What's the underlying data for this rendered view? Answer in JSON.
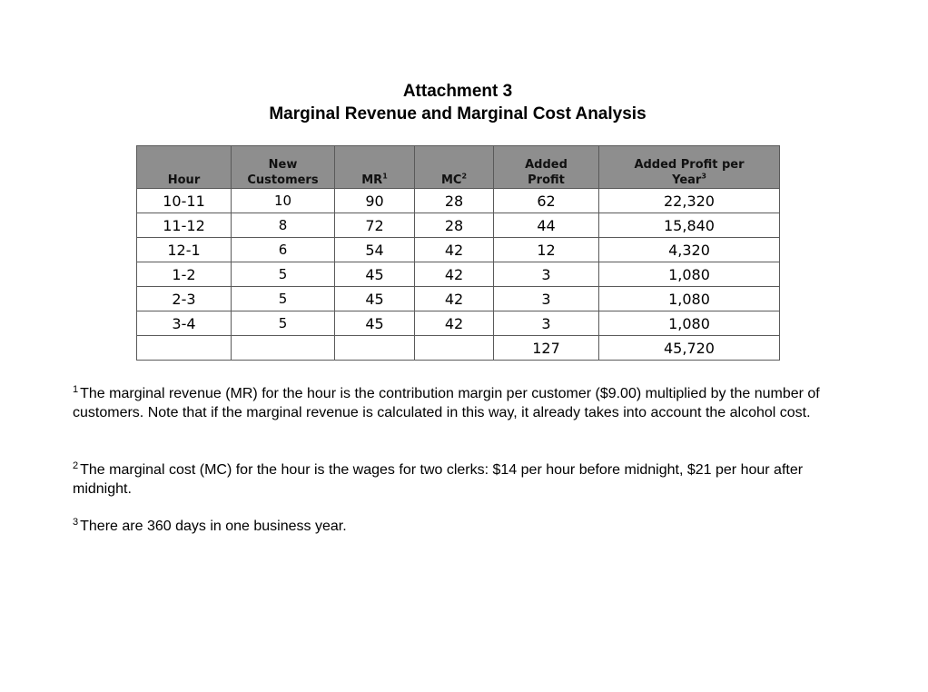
{
  "title": "Attachment 3",
  "subtitle": "Marginal Revenue and Marginal Cost Analysis",
  "table": {
    "headers": [
      {
        "line1": "",
        "line2": "Hour",
        "sup": ""
      },
      {
        "line1": "New",
        "line2": "Customers",
        "sup": ""
      },
      {
        "line1": "",
        "line2": "MR",
        "sup": "1"
      },
      {
        "line1": "",
        "line2": "MC",
        "sup": "2"
      },
      {
        "line1": "Added",
        "line2": "Profit",
        "sup": ""
      },
      {
        "line1": "Added Profit per",
        "line2": "Year",
        "sup": "3"
      }
    ],
    "rows": [
      [
        "10-11",
        "10",
        "90",
        "28",
        "62",
        "22,320"
      ],
      [
        "11-12",
        "8",
        "72",
        "28",
        "44",
        "15,840"
      ],
      [
        "12-1",
        "6",
        "54",
        "42",
        "12",
        "4,320"
      ],
      [
        "1-2",
        "5",
        "45",
        "42",
        "3",
        "1,080"
      ],
      [
        "2-3",
        "5",
        "45",
        "42",
        "3",
        "1,080"
      ],
      [
        "3-4",
        "5",
        "45",
        "42",
        "3",
        "1,080"
      ],
      [
        "",
        "",
        "",
        "",
        "127",
        "45,720"
      ]
    ]
  },
  "footnotes": [
    {
      "mark": "1",
      "text": "The marginal revenue (MR) for the hour is the contribution margin per customer ($9.00) multiplied by the number of customers.  Note that if the marginal revenue is calculated in this way, it already takes into account the alcohol cost."
    },
    {
      "mark": "2",
      "text": "The marginal cost (MC) for the hour is the wages for two clerks:  $14 per hour before midnight, $21 per hour after midnight."
    },
    {
      "mark": "3",
      "text": "There are 360 days in one business year."
    }
  ]
}
